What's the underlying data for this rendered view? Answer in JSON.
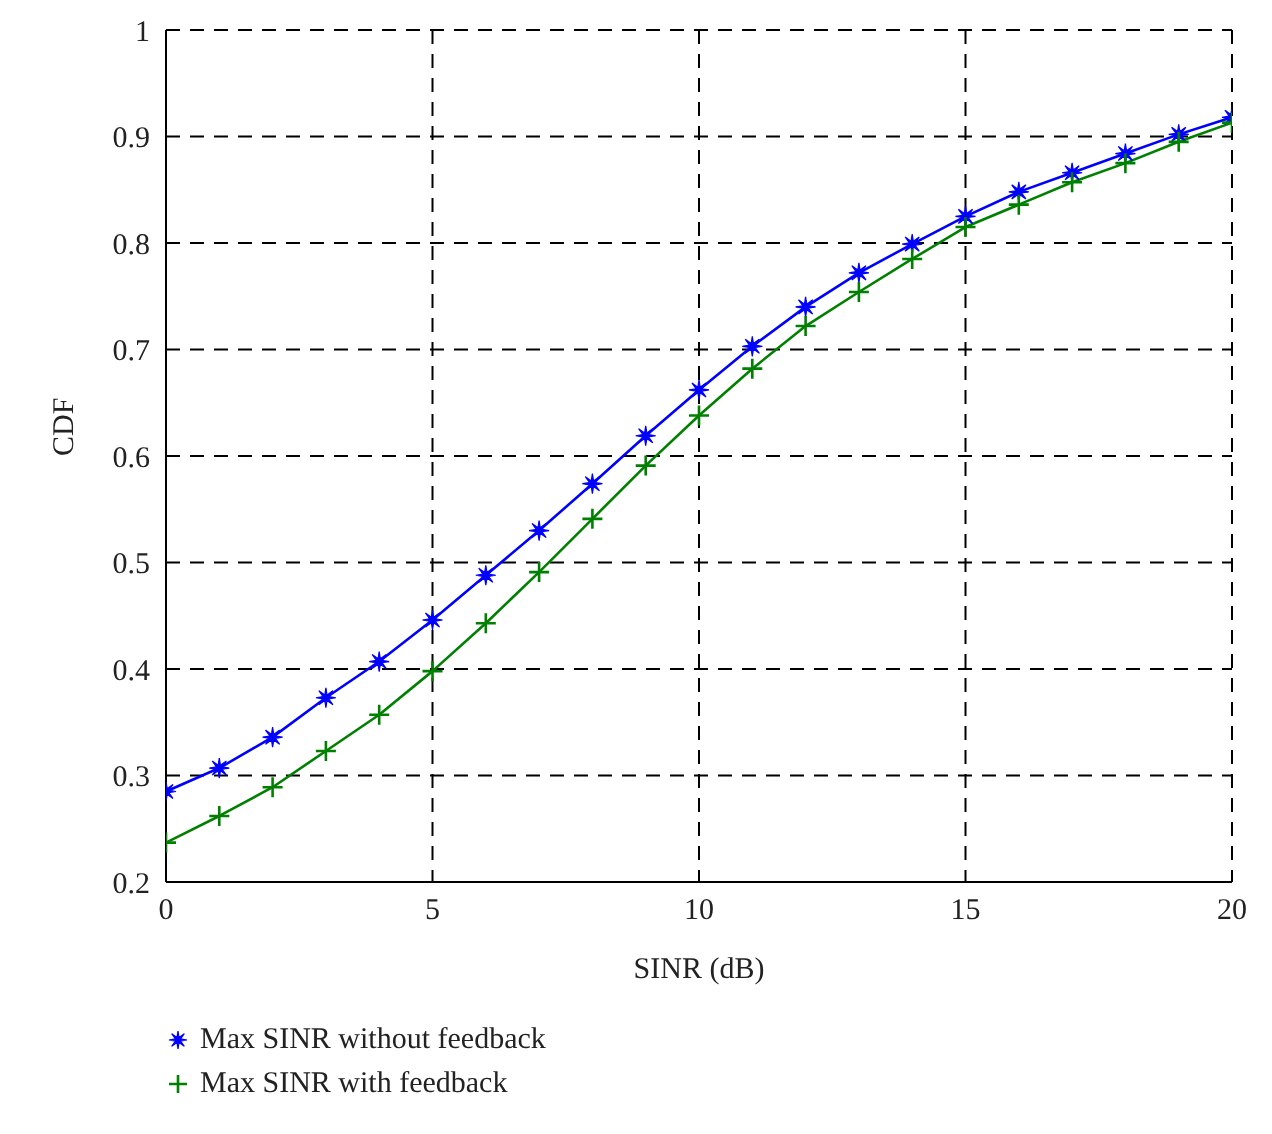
{
  "chart_data": {
    "type": "line",
    "xlabel": "SINR (dB)",
    "ylabel": "CDF",
    "x": [
      0,
      1,
      2,
      3,
      4,
      5,
      6,
      7,
      8,
      9,
      10,
      11,
      12,
      13,
      14,
      15,
      16,
      17,
      18,
      19,
      20
    ],
    "series": [
      {
        "name": "Max SINR without feedback",
        "color": "#0000ff",
        "marker": "star",
        "values": [
          0.285,
          0.307,
          0.336,
          0.373,
          0.407,
          0.446,
          0.488,
          0.53,
          0.574,
          0.619,
          0.662,
          0.703,
          0.74,
          0.772,
          0.799,
          0.825,
          0.848,
          0.866,
          0.884,
          0.902,
          0.918
        ]
      },
      {
        "name": "Max SINR with feedback",
        "color": "#008000",
        "marker": "cross",
        "values": [
          0.237,
          0.262,
          0.289,
          0.323,
          0.357,
          0.398,
          0.443,
          0.491,
          0.541,
          0.591,
          0.638,
          0.682,
          0.722,
          0.754,
          0.785,
          0.815,
          0.836,
          0.857,
          0.875,
          0.895,
          0.913
        ]
      }
    ],
    "xlim": [
      0,
      20
    ],
    "xticks": [
      0,
      5,
      10,
      15,
      20
    ],
    "ylim": [
      0.2,
      1
    ],
    "yticks": [
      0.2,
      0.3,
      0.4,
      0.5,
      0.6,
      0.7,
      0.8,
      0.9,
      1
    ],
    "grid": true,
    "legend": "bottom",
    "line_style": "solid"
  }
}
